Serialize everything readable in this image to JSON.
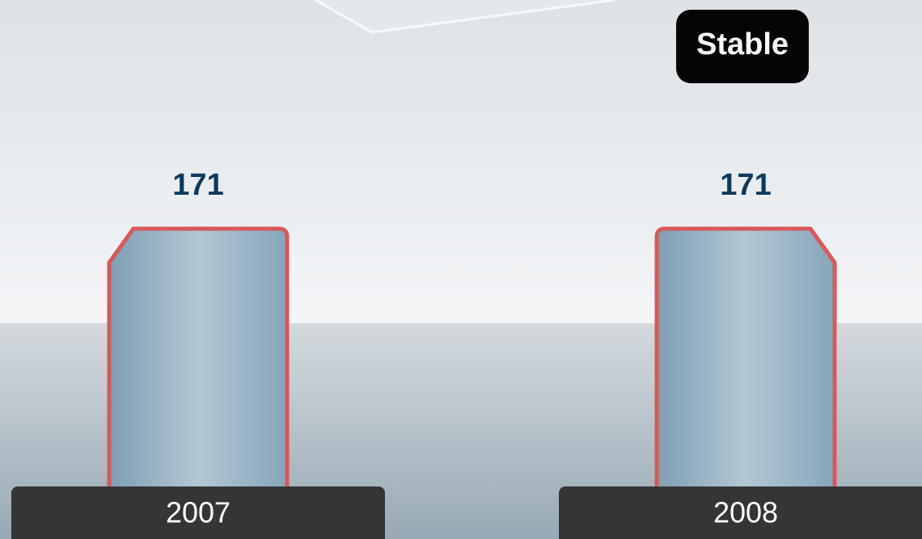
{
  "chart_data": {
    "type": "bar",
    "categories": [
      "2007",
      "2008"
    ],
    "values": [
      171,
      171
    ],
    "color": "#8fb0c4",
    "annotation": "Stable"
  }
}
